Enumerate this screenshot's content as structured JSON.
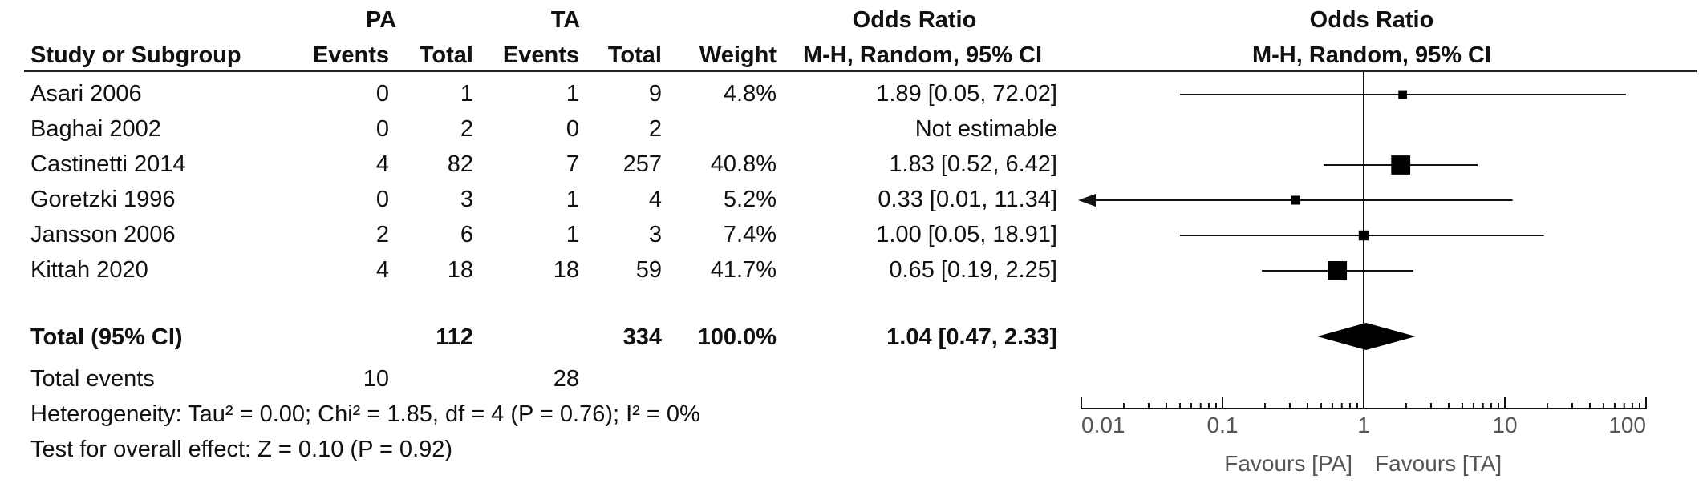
{
  "header": {
    "group1": "PA",
    "group2": "TA",
    "study_col": "Study or Subgroup",
    "events": "Events",
    "total": "Total",
    "weight": "Weight",
    "or_title": "Odds Ratio",
    "or_method": "M-H, Random, 95% CI",
    "plot_title": "Odds Ratio",
    "plot_method": "M-H, Random, 95% CI"
  },
  "studies": [
    {
      "name": "Asari 2006",
      "pa_events": "0",
      "pa_total": "1",
      "ta_events": "1",
      "ta_total": "9",
      "weight": "4.8%",
      "ci": "1.89 [0.05, 72.02]"
    },
    {
      "name": "Baghai 2002",
      "pa_events": "0",
      "pa_total": "2",
      "ta_events": "0",
      "ta_total": "2",
      "weight": "",
      "ci": "Not estimable"
    },
    {
      "name": "Castinetti 2014",
      "pa_events": "4",
      "pa_total": "82",
      "ta_events": "7",
      "ta_total": "257",
      "weight": "40.8%",
      "ci": "1.83 [0.52, 6.42]"
    },
    {
      "name": "Goretzki 1996",
      "pa_events": "0",
      "pa_total": "3",
      "ta_events": "1",
      "ta_total": "4",
      "weight": "5.2%",
      "ci": "0.33 [0.01, 11.34]"
    },
    {
      "name": "Jansson 2006",
      "pa_events": "2",
      "pa_total": "6",
      "ta_events": "1",
      "ta_total": "3",
      "weight": "7.4%",
      "ci": "1.00 [0.05, 18.91]"
    },
    {
      "name": "Kittah 2020",
      "pa_events": "4",
      "pa_total": "18",
      "ta_events": "18",
      "ta_total": "59",
      "weight": "41.7%",
      "ci": "0.65 [0.19, 2.25]"
    }
  ],
  "total": {
    "label": "Total (95% CI)",
    "pa_total": "112",
    "ta_total": "334",
    "weight": "100.0%",
    "ci": "1.04 [0.47, 2.33]"
  },
  "total_events": {
    "label": "Total events",
    "pa": "10",
    "ta": "28"
  },
  "heterogeneity": "Heterogeneity: Tau² = 0.00; Chi² = 1.85, df = 4 (P = 0.76); I² = 0%",
  "overall_effect": "Test for overall effect: Z = 0.10 (P = 0.92)",
  "chart_data": {
    "type": "forest",
    "scale": "log",
    "xlim": [
      0.01,
      100
    ],
    "null_value": 1,
    "ticks": [
      0.01,
      0.1,
      1,
      10,
      100
    ],
    "tick_labels": [
      "0.01",
      "0.1",
      "1",
      "10",
      "100"
    ],
    "favours_left": "Favours [PA]",
    "favours_right": "Favours [TA]",
    "studies": [
      {
        "name": "Asari 2006",
        "or": 1.89,
        "lo": 0.05,
        "hi": 72.02,
        "weight": 4.8
      },
      {
        "name": "Baghai 2002",
        "or": null,
        "lo": null,
        "hi": null,
        "weight": null
      },
      {
        "name": "Castinetti 2014",
        "or": 1.83,
        "lo": 0.52,
        "hi": 6.42,
        "weight": 40.8
      },
      {
        "name": "Goretzki 1996",
        "or": 0.33,
        "lo": 0.01,
        "hi": 11.34,
        "weight": 5.2
      },
      {
        "name": "Jansson 2006",
        "or": 1.0,
        "lo": 0.05,
        "hi": 18.91,
        "weight": 7.4
      },
      {
        "name": "Kittah 2020",
        "or": 0.65,
        "lo": 0.19,
        "hi": 2.25,
        "weight": 41.7
      }
    ],
    "pooled": {
      "or": 1.04,
      "lo": 0.47,
      "hi": 2.33
    }
  }
}
